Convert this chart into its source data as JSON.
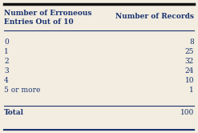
{
  "col1_header_line1": "Number of Erroneous",
  "col1_header_line2": "Entries Out of 10",
  "col2_header": "Number of Records",
  "rows": [
    [
      "0",
      "8"
    ],
    [
      "1",
      "25"
    ],
    [
      "2",
      "32"
    ],
    [
      "3",
      "24"
    ],
    [
      "4",
      "10"
    ],
    [
      "5 or more",
      "1"
    ]
  ],
  "total_label": "Total",
  "total_value": "100",
  "header_color": "#1a3270",
  "text_color": "#1a3270",
  "bg_color": "#f2ede0",
  "line_color": "#1a3270",
  "figsize": [
    2.47,
    1.66
  ],
  "dpi": 100,
  "font_size": 6.5
}
